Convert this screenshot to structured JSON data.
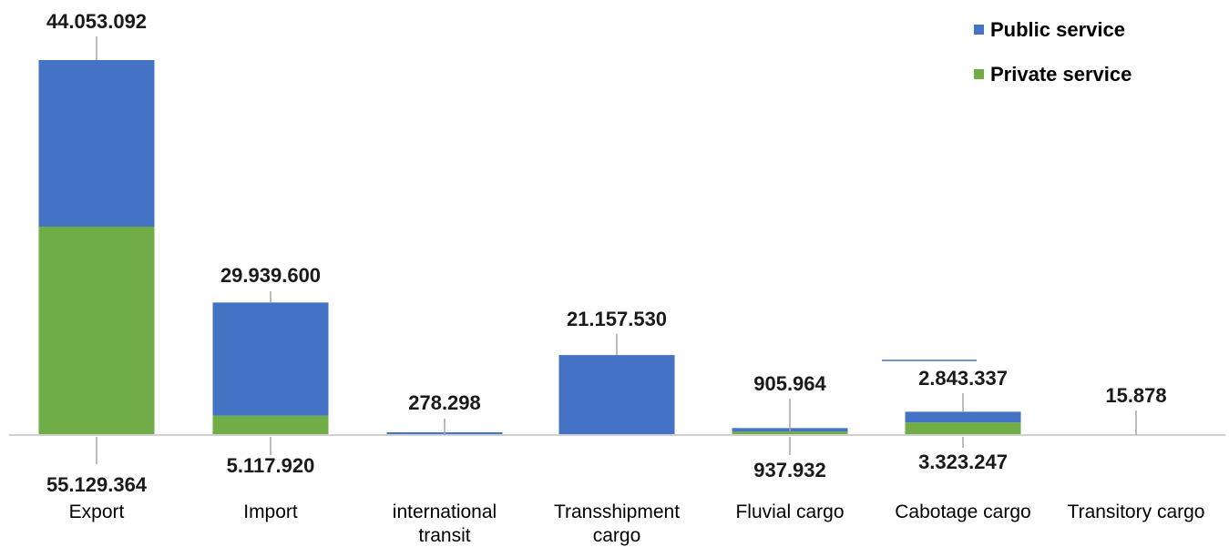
{
  "chart_data": {
    "type": "bar",
    "stacked": true,
    "categories": [
      "Export",
      "Import",
      "international transit",
      "Transshipment cargo",
      "Fluvial cargo",
      "Cabotage cargo",
      "Transitory cargo"
    ],
    "series": [
      {
        "name": "Private service",
        "color": "#70ad47",
        "values": [
          55129364,
          5117920,
          0,
          0,
          937932,
          3323247,
          0
        ],
        "labels": [
          "55.129.364",
          "5.117.920",
          "",
          "",
          "937.932",
          "3.323.247",
          ""
        ]
      },
      {
        "name": "Public service",
        "color": "#4472c4",
        "values": [
          44053092,
          29939600,
          278298,
          21157530,
          905964,
          2843337,
          15878
        ],
        "labels": [
          "44.053.092",
          "29.939.600",
          "278.298",
          "21.157.530",
          "905.964",
          "2.843.337",
          "15.878"
        ]
      }
    ],
    "legend": {
      "position": "top-right"
    },
    "ylim": [
      0,
      100000000
    ],
    "grid": false,
    "title": "",
    "xlabel": "",
    "ylabel": ""
  }
}
